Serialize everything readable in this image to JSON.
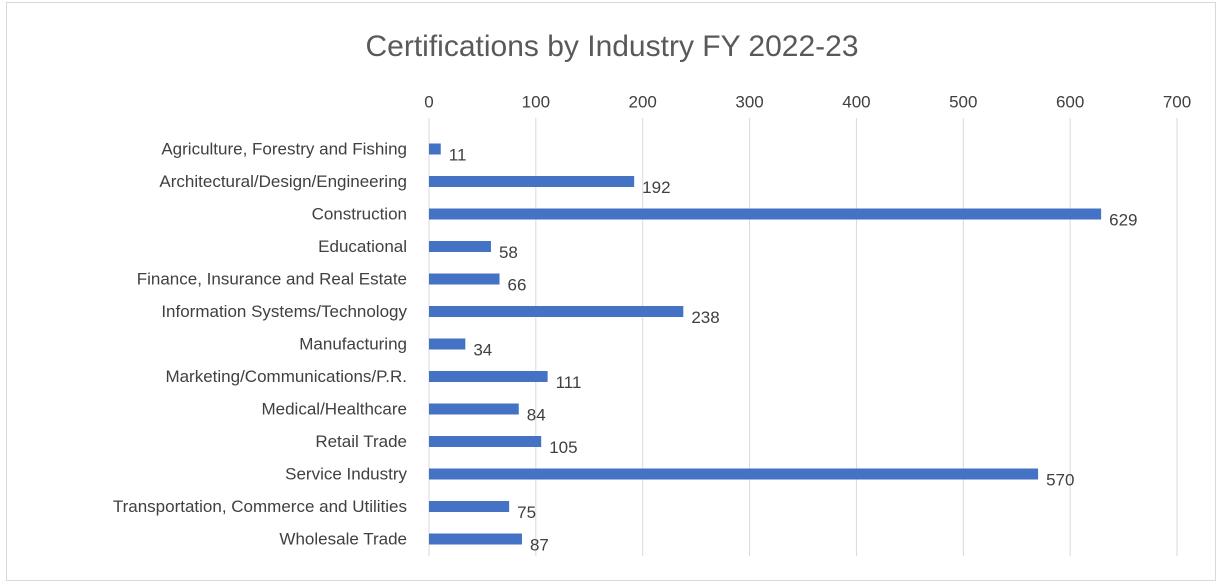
{
  "chart_data": {
    "type": "bar",
    "orientation": "horizontal",
    "title": "Certifications by Industry FY 2022-23",
    "categories": [
      "Agriculture, Forestry and Fishing",
      "Architectural/Design/Engineering",
      "Construction",
      "Educational",
      "Finance, Insurance and Real Estate",
      "Information Systems/Technology",
      "Manufacturing",
      "Marketing/Communications/P.R.",
      "Medical/Healthcare",
      "Retail Trade",
      "Service Industry",
      "Transportation, Commerce and Utilities",
      "Wholesale Trade"
    ],
    "values": [
      11,
      192,
      629,
      58,
      66,
      238,
      34,
      111,
      84,
      105,
      570,
      75,
      87
    ],
    "color": "#4472c4",
    "xlim": [
      0,
      700
    ],
    "xticks": [
      0,
      100,
      200,
      300,
      400,
      500,
      600,
      700
    ],
    "grid": true
  }
}
